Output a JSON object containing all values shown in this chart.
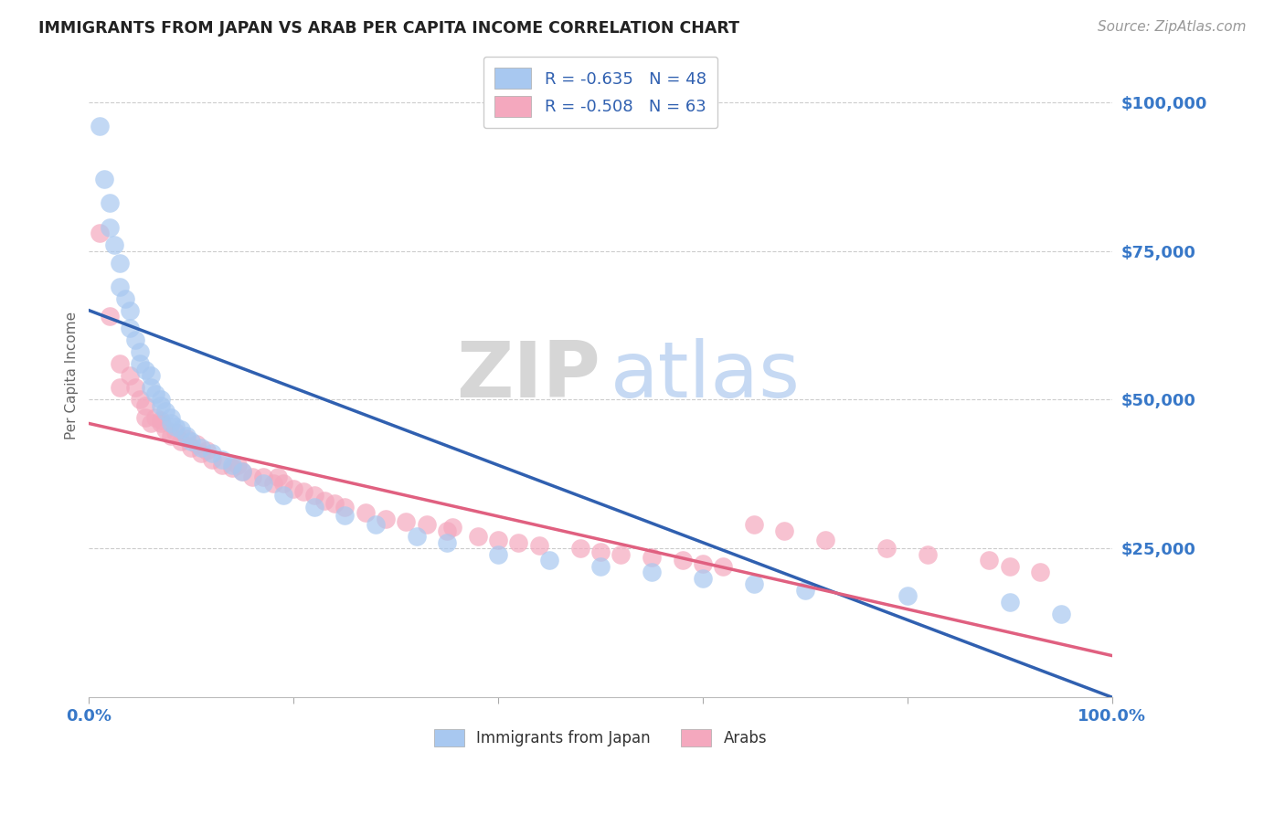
{
  "title": "IMMIGRANTS FROM JAPAN VS ARAB PER CAPITA INCOME CORRELATION CHART",
  "source": "Source: ZipAtlas.com",
  "ylabel": "Per Capita Income",
  "legend_r_japan": "R = -0.635",
  "legend_n_japan": "N = 48",
  "legend_r_arab": "R = -0.508",
  "legend_n_arab": "N = 63",
  "legend_label_japan": "Immigrants from Japan",
  "legend_label_arab": "Arabs",
  "blue_color": "#A8C8F0",
  "pink_color": "#F4A8BE",
  "blue_line_color": "#3060B0",
  "pink_line_color": "#E06080",
  "axis_label_color": "#3878C8",
  "japan_x": [
    1.0,
    1.5,
    2.0,
    2.0,
    2.5,
    3.0,
    3.0,
    3.5,
    4.0,
    4.0,
    4.5,
    5.0,
    5.0,
    5.5,
    6.0,
    6.0,
    6.5,
    7.0,
    7.0,
    7.5,
    8.0,
    8.0,
    8.5,
    9.0,
    9.5,
    10.0,
    11.0,
    12.0,
    13.0,
    14.0,
    15.0,
    17.0,
    19.0,
    22.0,
    25.0,
    28.0,
    32.0,
    35.0,
    40.0,
    45.0,
    50.0,
    55.0,
    60.0,
    65.0,
    70.0,
    80.0,
    90.0,
    95.0
  ],
  "japan_y": [
    96000,
    87000,
    83000,
    79000,
    76000,
    73000,
    69000,
    67000,
    65000,
    62000,
    60000,
    58000,
    56000,
    55000,
    54000,
    52000,
    51000,
    50000,
    49000,
    48000,
    47000,
    46000,
    45500,
    45000,
    44000,
    43000,
    42000,
    41000,
    40000,
    39000,
    38000,
    36000,
    34000,
    32000,
    30500,
    29000,
    27000,
    26000,
    24000,
    23000,
    22000,
    21000,
    20000,
    19000,
    18000,
    17000,
    16000,
    14000
  ],
  "arab_x": [
    1.0,
    2.0,
    3.0,
    3.0,
    4.0,
    4.5,
    5.0,
    5.5,
    5.5,
    6.0,
    6.5,
    7.0,
    7.0,
    7.5,
    8.0,
    8.5,
    9.0,
    9.5,
    10.0,
    10.5,
    11.0,
    11.5,
    12.0,
    13.0,
    14.0,
    14.5,
    15.0,
    16.0,
    17.0,
    18.0,
    18.5,
    19.0,
    20.0,
    21.0,
    22.0,
    23.0,
    24.0,
    25.0,
    27.0,
    29.0,
    31.0,
    33.0,
    35.0,
    35.5,
    38.0,
    40.0,
    42.0,
    44.0,
    48.0,
    50.0,
    52.0,
    55.0,
    58.0,
    60.0,
    62.0,
    65.0,
    68.0,
    72.0,
    78.0,
    82.0,
    88.0,
    90.0,
    93.0
  ],
  "arab_y": [
    78000,
    64000,
    56000,
    52000,
    54000,
    52000,
    50000,
    49000,
    47000,
    46000,
    47000,
    46000,
    46500,
    45000,
    44000,
    44500,
    43000,
    43500,
    42000,
    42500,
    41000,
    41500,
    40000,
    39000,
    38500,
    39000,
    38000,
    37000,
    37000,
    36000,
    37000,
    36000,
    35000,
    34500,
    34000,
    33000,
    32500,
    32000,
    31000,
    30000,
    29500,
    29000,
    28000,
    28500,
    27000,
    26500,
    26000,
    25500,
    25000,
    24500,
    24000,
    23500,
    23000,
    22500,
    22000,
    29000,
    28000,
    26500,
    25000,
    24000,
    23000,
    22000,
    21000
  ],
  "japan_line_x": [
    0,
    100
  ],
  "japan_line_y": [
    65000,
    0
  ],
  "arab_line_x": [
    0,
    100
  ],
  "arab_line_y": [
    46000,
    7000
  ],
  "xlim": [
    0,
    100
  ],
  "ylim": [
    0,
    108000
  ],
  "yticks": [
    0,
    25000,
    50000,
    75000,
    100000
  ],
  "ytick_labels": [
    "",
    "$25,000",
    "$50,000",
    "$75,000",
    "$100,000"
  ],
  "xticks": [
    0,
    20,
    40,
    60,
    80,
    100
  ],
  "xtick_labels": [
    "0.0%",
    "",
    "",
    "",
    "",
    "100.0%"
  ]
}
